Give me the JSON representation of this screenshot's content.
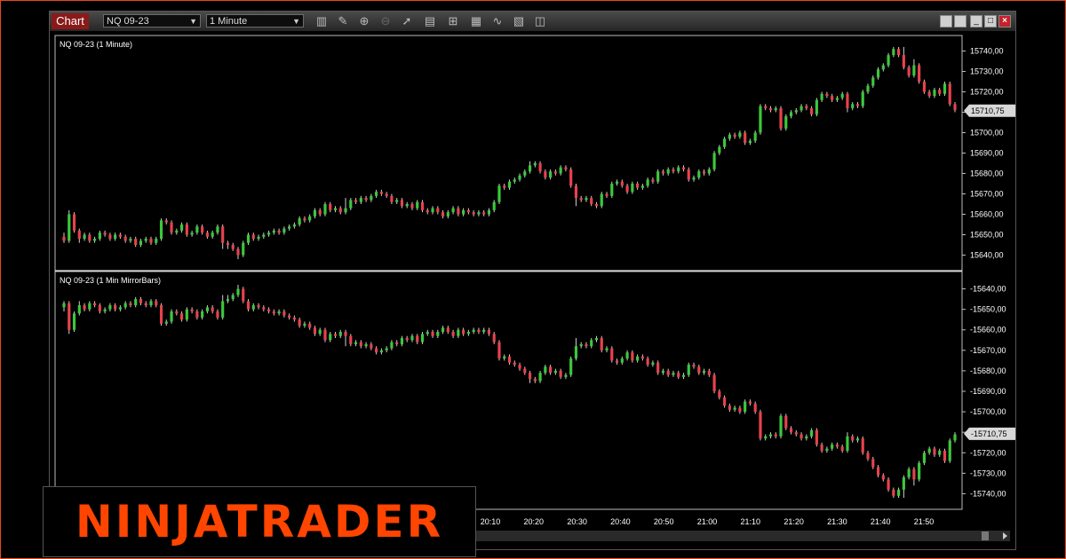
{
  "toolbar": {
    "tab_label": "Chart",
    "instrument": "NQ 09-23",
    "interval": "1 Minute",
    "tools": [
      "bar-style-icon",
      "pencil-icon",
      "zoom-in-icon",
      "zoom-out-icon",
      "pointer-icon",
      "data-box-icon",
      "properties-icon",
      "templates-icon",
      "indicators-icon",
      "strategies-icon",
      "snapshot-icon"
    ],
    "window_buttons": [
      "",
      "",
      "_",
      "□",
      "×"
    ]
  },
  "logo": {
    "text": "NINJATRADER"
  },
  "chart_data": [
    {
      "type": "candlestick",
      "title": "NQ 09-23 (1 Minute)",
      "ylim": [
        15635,
        15745
      ],
      "yticks": [
        "15740,00",
        "15730,00",
        "15720,00",
        "15710,00",
        "15700,00",
        "15690,00",
        "15680,00",
        "15670,00",
        "15660,00",
        "15650,00",
        "15640,00"
      ],
      "ytick_values": [
        15740,
        15730,
        15720,
        15710,
        15700,
        15690,
        15680,
        15670,
        15660,
        15650,
        15640
      ],
      "last_price": "15710,75",
      "last_price_value": 15710.75,
      "colors": {
        "up": "#3cc83c",
        "down": "#e8424c",
        "grid": "#ffffff"
      }
    },
    {
      "type": "candlestick",
      "title": "NQ 09-23 (1 Min MirrorBars)",
      "mirror": true,
      "ylim": [
        -15745,
        -15635
      ],
      "yticks": [
        "-15640,00",
        "-15650,00",
        "-15660,00",
        "-15670,00",
        "-15680,00",
        "-15690,00",
        "-15700,00",
        "-15710,00",
        "-15720,00",
        "-15730,00",
        "-15740,00"
      ],
      "ytick_values": [
        -15640,
        -15650,
        -15660,
        -15670,
        -15680,
        -15690,
        -15700,
        -15710,
        -15720,
        -15730,
        -15740
      ],
      "last_price": "-15710,75",
      "last_price_value": -15710.75,
      "colors": {
        "up": "#3cc83c",
        "down": "#e8424c"
      }
    }
  ],
  "xaxis": {
    "labels": [
      "20:10",
      "20:20",
      "20:30",
      "20:40",
      "20:50",
      "21:00",
      "21:10",
      "21:20",
      "21:30",
      "21:40",
      "21:50"
    ]
  },
  "candles": [
    [
      15649,
      15647,
      15651,
      15646
    ],
    [
      15647,
      15660,
      15662,
      15646
    ],
    [
      15660,
      15652,
      15661,
      15651
    ],
    [
      15652,
      15648,
      15653,
      15646
    ],
    [
      15648,
      15650,
      15651,
      15647
    ],
    [
      15650,
      15647,
      15651,
      15646
    ],
    [
      15647,
      15648,
      15649,
      15646
    ],
    [
      15648,
      15651,
      15652,
      15647
    ],
    [
      15651,
      15650,
      15652,
      15649
    ],
    [
      15650,
      15648,
      15651,
      15647
    ],
    [
      15648,
      15650,
      15651,
      15647
    ],
    [
      15650,
      15649,
      15651,
      15648
    ],
    [
      15649,
      15647,
      15650,
      15646
    ],
    [
      15647,
      15648,
      15649,
      15646
    ],
    [
      15648,
      15645,
      15649,
      15644
    ],
    [
      15645,
      15647,
      15648,
      15644
    ],
    [
      15647,
      15648,
      15649,
      15646
    ],
    [
      15648,
      15646,
      15649,
      15645
    ],
    [
      15646,
      15648,
      15649,
      15645
    ],
    [
      15648,
      15657,
      15658,
      15647
    ],
    [
      15657,
      15656,
      15658,
      15655
    ],
    [
      15656,
      15651,
      15657,
      15650
    ],
    [
      15651,
      15652,
      15653,
      15650
    ],
    [
      15652,
      15655,
      15656,
      15651
    ],
    [
      15655,
      15650,
      15656,
      15649
    ],
    [
      15650,
      15651,
      15652,
      15649
    ],
    [
      15651,
      15654,
      15655,
      15650
    ],
    [
      15654,
      15651,
      15655,
      15650
    ],
    [
      15651,
      15649,
      15652,
      15648
    ],
    [
      15649,
      15651,
      15652,
      15648
    ],
    [
      15651,
      15654,
      15655,
      15650
    ],
    [
      15654,
      15646,
      15655,
      15643
    ],
    [
      15646,
      15645,
      15647,
      15643
    ],
    [
      15645,
      15643,
      15646,
      15642
    ],
    [
      15643,
      15640,
      15644,
      15638
    ],
    [
      15640,
      15646,
      15647,
      15639
    ],
    [
      15646,
      15650,
      15651,
      15645
    ],
    [
      15650,
      15648,
      15651,
      15647
    ],
    [
      15648,
      15649,
      15650,
      15647
    ],
    [
      15649,
      15650,
      15651,
      15648
    ],
    [
      15650,
      15651,
      15652,
      15649
    ],
    [
      15651,
      15652,
      15653,
      15650
    ],
    [
      15652,
      15651,
      15653,
      15650
    ],
    [
      15651,
      15653,
      15654,
      15650
    ],
    [
      15653,
      15654,
      15655,
      15652
    ],
    [
      15654,
      15655,
      15656,
      15653
    ],
    [
      15655,
      15658,
      15659,
      15654
    ],
    [
      15658,
      15657,
      15659,
      15656
    ],
    [
      15657,
      15659,
      15660,
      15656
    ],
    [
      15659,
      15662,
      15663,
      15658
    ],
    [
      15662,
      15660,
      15663,
      15659
    ],
    [
      15660,
      15665,
      15666,
      15659
    ],
    [
      15665,
      15662,
      15666,
      15661
    ],
    [
      15662,
      15663,
      15664,
      15661
    ],
    [
      15663,
      15661,
      15664,
      15660
    ],
    [
      15661,
      15663,
      15668,
      15660
    ],
    [
      15663,
      15667,
      15668,
      15662
    ],
    [
      15667,
      15666,
      15668,
      15665
    ],
    [
      15666,
      15668,
      15669,
      15665
    ],
    [
      15668,
      15667,
      15669,
      15666
    ],
    [
      15667,
      15669,
      15670,
      15666
    ],
    [
      15669,
      15671,
      15672,
      15668
    ],
    [
      15671,
      15670,
      15672,
      15669
    ],
    [
      15670,
      15669,
      15671,
      15668
    ],
    [
      15669,
      15666,
      15670,
      15665
    ],
    [
      15666,
      15667,
      15668,
      15665
    ],
    [
      15667,
      15664,
      15668,
      15663
    ],
    [
      15664,
      15665,
      15666,
      15663
    ],
    [
      15665,
      15663,
      15666,
      15662
    ],
    [
      15663,
      15666,
      15667,
      15662
    ],
    [
      15666,
      15662,
      15667,
      15661
    ],
    [
      15662,
      15661,
      15663,
      15660
    ],
    [
      15661,
      15663,
      15664,
      15660
    ],
    [
      15663,
      15661,
      15664,
      15660
    ],
    [
      15661,
      15659,
      15662,
      15658
    ],
    [
      15659,
      15661,
      15662,
      15658
    ],
    [
      15661,
      15663,
      15664,
      15660
    ],
    [
      15663,
      15660,
      15664,
      15659
    ],
    [
      15660,
      15662,
      15663,
      15659
    ],
    [
      15662,
      15661,
      15663,
      15660
    ],
    [
      15661,
      15660,
      15662,
      15659
    ],
    [
      15660,
      15661,
      15662,
      15659
    ],
    [
      15661,
      15660,
      15662,
      15659
    ],
    [
      15660,
      15662,
      15663,
      15659
    ],
    [
      15662,
      15666,
      15667,
      15661
    ],
    [
      15666,
      15674,
      15675,
      15665
    ],
    [
      15674,
      15673,
      15675,
      15672
    ],
    [
      15673,
      15676,
      15677,
      15672
    ],
    [
      15676,
      15677,
      15678,
      15675
    ],
    [
      15677,
      15679,
      15680,
      15676
    ],
    [
      15679,
      15681,
      15682,
      15678
    ],
    [
      15681,
      15684,
      15686,
      15680
    ],
    [
      15684,
      15685,
      15686,
      15683
    ],
    [
      15685,
      15681,
      15686,
      15680
    ],
    [
      15681,
      15678,
      15682,
      15677
    ],
    [
      15678,
      15681,
      15682,
      15677
    ],
    [
      15681,
      15680,
      15682,
      15679
    ],
    [
      15680,
      15683,
      15684,
      15679
    ],
    [
      15683,
      15682,
      15684,
      15681
    ],
    [
      15682,
      15674,
      15683,
      15673
    ],
    [
      15674,
      15668,
      15675,
      15664
    ],
    [
      15668,
      15667,
      15669,
      15666
    ],
    [
      15667,
      15668,
      15669,
      15666
    ],
    [
      15668,
      15665,
      15669,
      15664
    ],
    [
      15665,
      15664,
      15666,
      15663
    ],
    [
      15664,
      15670,
      15671,
      15663
    ],
    [
      15670,
      15669,
      15671,
      15668
    ],
    [
      15669,
      15675,
      15676,
      15668
    ],
    [
      15675,
      15676,
      15677,
      15674
    ],
    [
      15676,
      15674,
      15677,
      15673
    ],
    [
      15674,
      15671,
      15675,
      15670
    ],
    [
      15671,
      15675,
      15676,
      15670
    ],
    [
      15675,
      15673,
      15676,
      15672
    ],
    [
      15673,
      15674,
      15675,
      15672
    ],
    [
      15674,
      15677,
      15678,
      15673
    ],
    [
      15677,
      15676,
      15678,
      15675
    ],
    [
      15676,
      15681,
      15682,
      15675
    ],
    [
      15681,
      15680,
      15682,
      15679
    ],
    [
      15680,
      15682,
      15683,
      15679
    ],
    [
      15682,
      15681,
      15683,
      15680
    ],
    [
      15681,
      15683,
      15684,
      15680
    ],
    [
      15683,
      15682,
      15684,
      15681
    ],
    [
      15682,
      15677,
      15683,
      15676
    ],
    [
      15677,
      15678,
      15679,
      15676
    ],
    [
      15678,
      15681,
      15682,
      15677
    ],
    [
      15681,
      15680,
      15682,
      15679
    ],
    [
      15680,
      15682,
      15683,
      15679
    ],
    [
      15682,
      15690,
      15691,
      15681
    ],
    [
      15690,
      15693,
      15694,
      15689
    ],
    [
      15693,
      15697,
      15698,
      15692
    ],
    [
      15697,
      15699,
      15700,
      15696
    ],
    [
      15699,
      15698,
      15700,
      15697
    ],
    [
      15698,
      15700,
      15701,
      15697
    ],
    [
      15700,
      15695,
      15701,
      15694
    ],
    [
      15695,
      15696,
      15697,
      15694
    ],
    [
      15696,
      15700,
      15701,
      15695
    ],
    [
      15700,
      15713,
      15714,
      15699
    ],
    [
      15713,
      15712,
      15714,
      15711
    ],
    [
      15712,
      15711,
      15713,
      15710
    ],
    [
      15711,
      15712,
      15713,
      15710
    ],
    [
      15712,
      15702,
      15713,
      15701
    ],
    [
      15702,
      15708,
      15709,
      15701
    ],
    [
      15708,
      15710,
      15711,
      15707
    ],
    [
      15710,
      15711,
      15712,
      15709
    ],
    [
      15711,
      15713,
      15714,
      15710
    ],
    [
      15713,
      15712,
      15714,
      15711
    ],
    [
      15712,
      15709,
      15713,
      15708
    ],
    [
      15709,
      15716,
      15717,
      15708
    ],
    [
      15716,
      15719,
      15720,
      15715
    ],
    [
      15719,
      15718,
      15720,
      15717
    ],
    [
      15718,
      15716,
      15719,
      15715
    ],
    [
      15716,
      15717,
      15718,
      15715
    ],
    [
      15717,
      15719,
      15720,
      15716
    ],
    [
      15719,
      15712,
      15720,
      15710
    ],
    [
      15712,
      15714,
      15715,
      15711
    ],
    [
      15714,
      15713,
      15715,
      15712
    ],
    [
      15713,
      15720,
      15721,
      15712
    ],
    [
      15720,
      15723,
      15724,
      15719
    ],
    [
      15723,
      15727,
      15728,
      15722
    ],
    [
      15727,
      15731,
      15732,
      15726
    ],
    [
      15731,
      15733,
      15734,
      15730
    ],
    [
      15733,
      15738,
      15739,
      15732
    ],
    [
      15738,
      15741,
      15742,
      15737
    ],
    [
      15741,
      15738,
      15742,
      15737
    ],
    [
      15738,
      15732,
      15742,
      15731
    ],
    [
      15732,
      15728,
      15733,
      15727
    ],
    [
      15728,
      15733,
      15736,
      15727
    ],
    [
      15733,
      15725,
      15734,
      15724
    ],
    [
      15725,
      15720,
      15726,
      15719
    ],
    [
      15720,
      15718,
      15721,
      15717
    ],
    [
      15718,
      15721,
      15722,
      15717
    ],
    [
      15721,
      15719,
      15722,
      15718
    ],
    [
      15719,
      15724,
      15725,
      15718
    ],
    [
      15724,
      15714,
      15725,
      15713
    ],
    [
      15714,
      15711,
      15715,
      15710
    ]
  ]
}
